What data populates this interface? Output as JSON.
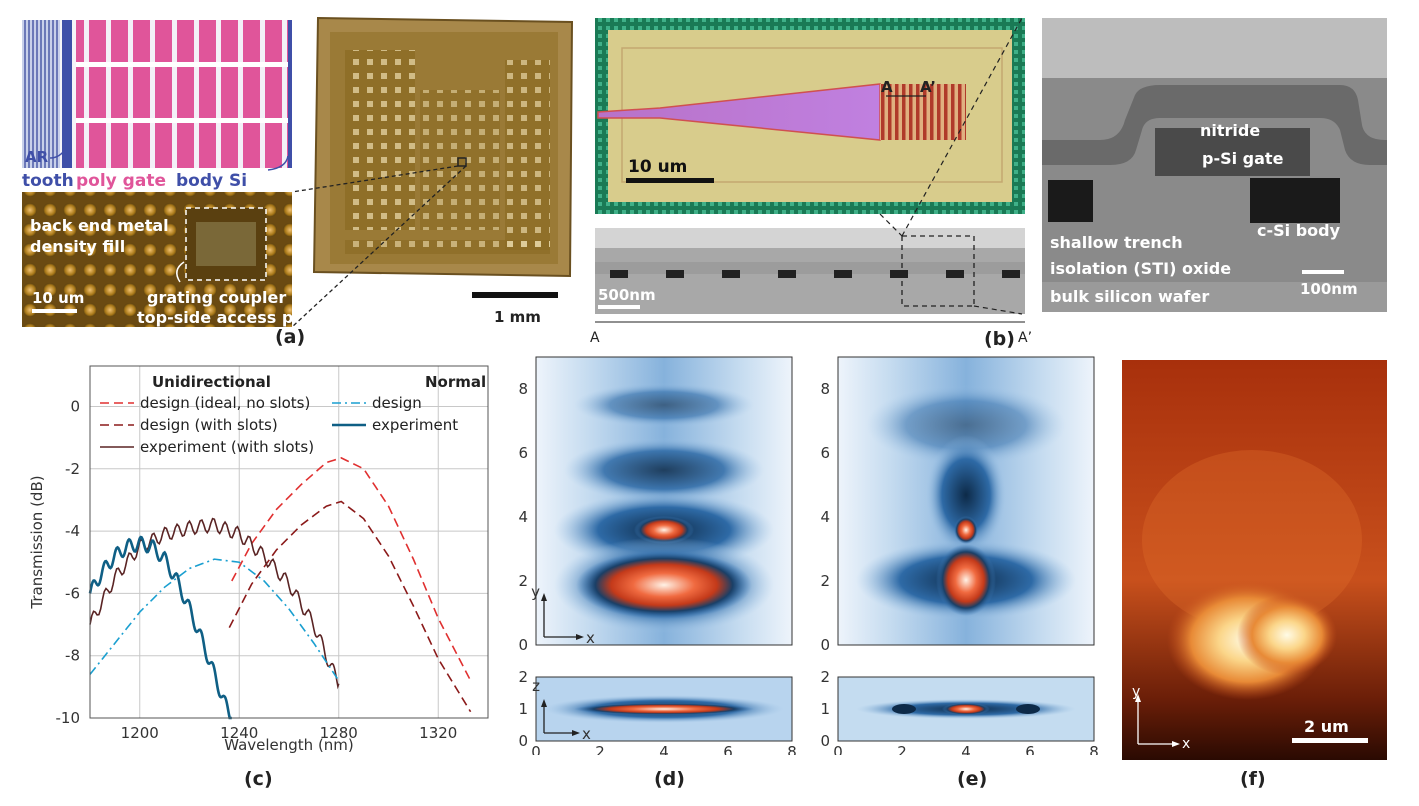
{
  "panels": {
    "a": {
      "label": "(a)",
      "layout_labels": {
        "ar": "AR",
        "tooth": "tooth",
        "poly_gate": "poly gate",
        "body_si": "body Si"
      },
      "micro_labels": {
        "back_end": "back end metal",
        "density": "density fill",
        "scale": "10 um",
        "grating1": "grating coupler",
        "grating2": "top-side access port"
      },
      "die_scale": "1 mm",
      "colors": {
        "poly_gate": "#e0559a",
        "body_si": "#3f4fa8"
      }
    },
    "b": {
      "label": "(b)",
      "optical_scale": "10 um",
      "cut_a": "A",
      "cut_a_prime": "A’",
      "sem_scale": "500nm",
      "bottom_a": "A",
      "bottom_a_prime": "A’",
      "tem_labels": {
        "nitride": "nitride",
        "gate": "p-Si gate",
        "body": "c-Si body",
        "sti1": "shallow trench",
        "sti2": "isolation (STI) oxide",
        "scale": "100nm",
        "wafer": "bulk silicon wafer"
      }
    },
    "c": {
      "label": "(c)"
    },
    "d": {
      "label": "(d)"
    },
    "e": {
      "label": "(e)"
    },
    "f": {
      "label": "(f)",
      "scale": "2 um",
      "axis_y": "y",
      "axis_x": "x"
    }
  },
  "chart_data": [
    {
      "type": "line",
      "panel": "c",
      "xlabel": "Wavelength (nm)",
      "ylabel": "Transmission (dB)",
      "xlim": [
        1180,
        1340
      ],
      "ylim": [
        -10,
        1.3
      ],
      "xticks": [
        1200,
        1240,
        1280,
        1320
      ],
      "yticks": [
        0,
        -2,
        -4,
        -6,
        -8,
        -10
      ],
      "grid": true,
      "legend_headers": {
        "left": "Unidirectional",
        "right": "Normal"
      },
      "series": [
        {
          "name": "design (ideal, no slots)",
          "style": "dashed",
          "color": "#e03030",
          "x": [
            1237,
            1245,
            1255,
            1265,
            1275,
            1281,
            1290,
            1300,
            1310,
            1320,
            1333
          ],
          "y": [
            -5.6,
            -4.4,
            -3.3,
            -2.5,
            -1.8,
            -1.65,
            -2.0,
            -3.2,
            -4.9,
            -6.8,
            -8.8
          ]
        },
        {
          "name": "design (with slots)",
          "style": "dashed",
          "color": "#8b1a1a",
          "x": [
            1236,
            1245,
            1255,
            1265,
            1275,
            1281,
            1290,
            1300,
            1310,
            1320,
            1333
          ],
          "y": [
            -7.1,
            -5.7,
            -4.6,
            -3.8,
            -3.2,
            -3.05,
            -3.6,
            -4.8,
            -6.4,
            -8.1,
            -9.8
          ]
        },
        {
          "name": "experiment (with slots)",
          "style": "solid",
          "color": "#5a2424",
          "x": [
            1180,
            1190,
            1200,
            1210,
            1220,
            1230,
            1240,
            1250,
            1260,
            1270,
            1275,
            1280
          ],
          "y": [
            -7.0,
            -5.5,
            -4.5,
            -4.1,
            -3.9,
            -3.8,
            -4.1,
            -4.8,
            -5.7,
            -7.0,
            -8.0,
            -8.9
          ]
        },
        {
          "name": "design",
          "style": "dashdot",
          "color": "#1a9fd0",
          "x": [
            1180,
            1190,
            1200,
            1210,
            1220,
            1230,
            1240,
            1250,
            1260,
            1270,
            1280
          ],
          "y": [
            -8.6,
            -7.6,
            -6.6,
            -5.8,
            -5.2,
            -4.9,
            -5.0,
            -5.6,
            -6.5,
            -7.6,
            -8.8
          ]
        },
        {
          "name": "experiment",
          "style": "solid",
          "color": "#0f5f85",
          "x": [
            1180,
            1185,
            1190,
            1195,
            1200,
            1205,
            1210,
            1215,
            1220,
            1225,
            1230,
            1234,
            1237
          ],
          "y": [
            -6.0,
            -5.3,
            -4.8,
            -4.5,
            -4.4,
            -4.5,
            -4.9,
            -5.6,
            -6.5,
            -7.5,
            -8.6,
            -9.5,
            -10
          ]
        }
      ]
    },
    {
      "type": "heatmap",
      "panel": "d",
      "top": {
        "xlim": [
          0,
          8
        ],
        "ylim": [
          0,
          9
        ],
        "yticks": [
          0,
          2,
          4,
          6,
          8
        ],
        "axis_y": "y",
        "axis_x": "x"
      },
      "bottom": {
        "xlim": [
          0,
          8
        ],
        "ylim": [
          0,
          2
        ],
        "xticks": [
          0,
          2,
          4,
          6,
          8
        ],
        "yticks": [
          0,
          1,
          2
        ],
        "axis_y": "z",
        "axis_x": "x"
      }
    },
    {
      "type": "heatmap",
      "panel": "e",
      "top": {
        "xlim": [
          0,
          8
        ],
        "ylim": [
          0,
          9
        ],
        "yticks": [
          0,
          2,
          4,
          6,
          8
        ]
      },
      "bottom": {
        "xlim": [
          0,
          8
        ],
        "ylim": [
          0,
          2
        ],
        "xticks": [
          0,
          2,
          4,
          6,
          8
        ],
        "yticks": [
          0,
          1,
          2
        ]
      }
    }
  ]
}
